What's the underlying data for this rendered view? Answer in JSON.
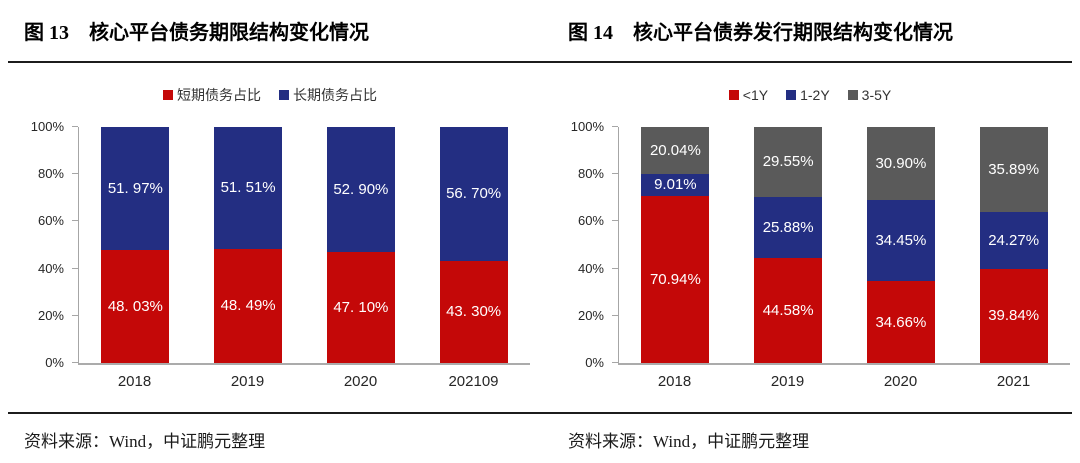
{
  "page": {
    "left": {
      "figure_label": "图 13",
      "title": "核心平台债务期限结构变化情况",
      "source": "资料来源：Wind，中证鹏元整理"
    },
    "right": {
      "figure_label": "图 14",
      "title": "核心平台债券发行期限结构变化情况",
      "source": "资料来源：Wind，中证鹏元整理"
    }
  },
  "colors": {
    "short_term_red": "#c40808",
    "long_term_blue": "#232e82",
    "mid_gray": "#5a5a5a",
    "axis_gray": "#a6a6a6",
    "rule_black": "#1c1c1c"
  },
  "chart_data": [
    {
      "id": "debt-maturity-structure",
      "type": "bar",
      "stacked": true,
      "title": "图 13 核心平台债务期限结构变化情况",
      "categories": [
        "2018",
        "2019",
        "2020",
        "202109"
      ],
      "series": [
        {
          "name": "短期债务占比",
          "color": "#c40808",
          "values": [
            48.03,
            48.49,
            47.1,
            43.3
          ],
          "labels": [
            "48. 03%",
            "48. 49%",
            "47. 10%",
            "43. 30%"
          ]
        },
        {
          "name": "长期债务占比",
          "color": "#232e82",
          "values": [
            51.97,
            51.51,
            52.9,
            56.7
          ],
          "labels": [
            "51. 97%",
            "51. 51%",
            "52. 90%",
            "56. 70%"
          ]
        }
      ],
      "xlabel": "",
      "ylabel": "",
      "ylim": [
        0,
        100
      ],
      "yticks": [
        "0%",
        "20%",
        "40%",
        "60%",
        "80%",
        "100%"
      ],
      "grid": false,
      "legend_position": "top"
    },
    {
      "id": "bond-issuance-maturity-structure",
      "type": "bar",
      "stacked": true,
      "title": "图 14 核心平台债券发行期限结构变化情况",
      "categories": [
        "2018",
        "2019",
        "2020",
        "2021"
      ],
      "series": [
        {
          "name": "<1Y",
          "color": "#c40808",
          "values": [
            70.94,
            44.58,
            34.66,
            39.84
          ],
          "labels": [
            "70.94%",
            "44.58%",
            "34.66%",
            "39.84%"
          ]
        },
        {
          "name": "1-2Y",
          "color": "#232e82",
          "values": [
            9.01,
            25.88,
            34.45,
            24.27
          ],
          "labels": [
            "9.01%",
            "25.88%",
            "34.45%",
            "24.27%"
          ]
        },
        {
          "name": "3-5Y",
          "color": "#5a5a5a",
          "values": [
            20.04,
            29.55,
            30.9,
            35.89
          ],
          "labels": [
            "20.04%",
            "29.55%",
            "30.90%",
            "35.89%"
          ]
        }
      ],
      "xlabel": "",
      "ylabel": "",
      "ylim": [
        0,
        100
      ],
      "yticks": [
        "0%",
        "20%",
        "40%",
        "60%",
        "80%",
        "100%"
      ],
      "grid": false,
      "legend_position": "top"
    }
  ]
}
